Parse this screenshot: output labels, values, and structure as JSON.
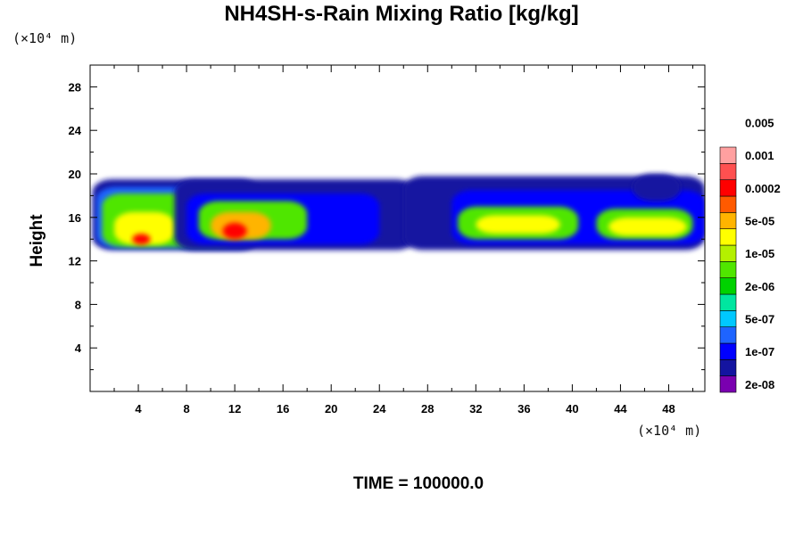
{
  "chart_data": {
    "type": "heatmap",
    "title": "NH4SH-s-Rain Mixing Ratio [kg/kg]",
    "xlabel": "",
    "ylabel": "Height",
    "x_unit": "(×10⁴ m)",
    "y_unit": "(×10⁴ m)",
    "xlim": [
      0,
      51
    ],
    "ylim": [
      0,
      30
    ],
    "x_ticks": [
      4,
      8,
      12,
      16,
      20,
      24,
      28,
      32,
      36,
      40,
      44,
      48
    ],
    "y_ticks": [
      4,
      8,
      12,
      16,
      20,
      24,
      28
    ],
    "colorbar": {
      "levels": [
        "2e-08",
        "1e-07",
        "5e-07",
        "2e-06",
        "1e-05",
        "5e-05",
        "0.0002",
        "0.001",
        "0.005"
      ],
      "colors": [
        "#7a00b0",
        "#1414a0",
        "#0000ff",
        "#1e64ff",
        "#00c8ff",
        "#00e6a0",
        "#00d200",
        "#50e600",
        "#b4f000",
        "#ffff00",
        "#ffb400",
        "#ff5a00",
        "#ff0000",
        "#ff5050",
        "#ffa0a0"
      ]
    },
    "regions": [
      {
        "x": [
          0.2,
          14
        ],
        "y": [
          13,
          19.5
        ],
        "level": "2e-08"
      },
      {
        "x": [
          0.5,
          14
        ],
        "y": [
          13.2,
          18.8
        ],
        "level": "2e-07"
      },
      {
        "x": [
          1,
          12
        ],
        "y": [
          13.3,
          18.2
        ],
        "level": "1e-05"
      },
      {
        "x": [
          2,
          7
        ],
        "y": [
          13.5,
          16.5
        ],
        "level": "5e-05"
      },
      {
        "x": [
          3.5,
          5
        ],
        "y": [
          13.5,
          14.5
        ],
        "level": "0.001"
      },
      {
        "x": [
          7,
          27
        ],
        "y": [
          13,
          19.5
        ],
        "level": "2e-08"
      },
      {
        "x": [
          8,
          24
        ],
        "y": [
          13.5,
          18.2
        ],
        "level": "1e-07"
      },
      {
        "x": [
          9,
          18
        ],
        "y": [
          14,
          17.5
        ],
        "level": "1e-05"
      },
      {
        "x": [
          10,
          15
        ],
        "y": [
          14,
          16.5
        ],
        "level": "0.0002"
      },
      {
        "x": [
          11,
          13
        ],
        "y": [
          14,
          15.5
        ],
        "level": "0.001"
      },
      {
        "x": [
          26,
          51
        ],
        "y": [
          13,
          19.8
        ],
        "level": "2e-08"
      },
      {
        "x": [
          30,
          51
        ],
        "y": [
          13.5,
          18.5
        ],
        "level": "1e-07"
      },
      {
        "x": [
          30.5,
          40.5
        ],
        "y": [
          14,
          17
        ],
        "level": "1e-05"
      },
      {
        "x": [
          32,
          39
        ],
        "y": [
          14.5,
          16.2
        ],
        "level": "5e-05"
      },
      {
        "x": [
          42,
          50
        ],
        "y": [
          14,
          16.8
        ],
        "level": "1e-05"
      },
      {
        "x": [
          43,
          49.5
        ],
        "y": [
          14.3,
          16
        ],
        "level": "5e-05"
      },
      {
        "x": [
          45,
          49
        ],
        "y": [
          17.5,
          20
        ],
        "level": "2e-08"
      }
    ]
  },
  "footer": "TIME = 100000.0"
}
